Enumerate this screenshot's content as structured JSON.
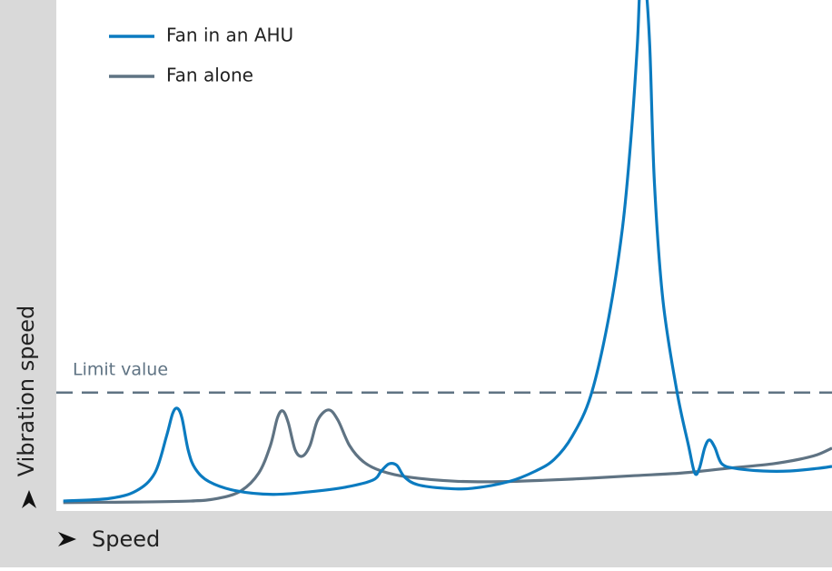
{
  "chart_data": {
    "type": "line",
    "x_label": "Speed",
    "y_label": "Vibration speed",
    "xlim": [
      0,
      100
    ],
    "ylim": [
      0,
      100
    ],
    "series": [
      {
        "name": "Fan in an AHU",
        "color": "#0b7bc0",
        "x": [
          0.9,
          6.8,
          10.3,
          12.7,
          14.2,
          15.0,
          15.6,
          16.2,
          17.0,
          17.9,
          19.7,
          23.2,
          27.9,
          32.6,
          37.2,
          40.8,
          41.9,
          42.9,
          43.9,
          44.9,
          46.6,
          50.1,
          53.6,
          58.3,
          61.8,
          64.2,
          66.5,
          68.9,
          71.2,
          73.0,
          74.1,
          74.9,
          75.3,
          75.9,
          76.5,
          77.1,
          78.2,
          80.0,
          81.5,
          82.3,
          82.9,
          83.6,
          84.2,
          84.9,
          85.8,
          87.6,
          91.1,
          94.6,
          98.1,
          100
        ],
        "values": [
          1.6,
          2.1,
          3.6,
          7.1,
          14.3,
          18.8,
          19.8,
          17.9,
          11.6,
          8.0,
          5.4,
          3.6,
          2.9,
          3.4,
          4.3,
          5.7,
          7.5,
          8.9,
          8.6,
          6.3,
          4.8,
          4.1,
          4.1,
          5.4,
          7.5,
          9.8,
          14.3,
          22.3,
          37.5,
          55.4,
          73.2,
          91.1,
          104,
          104,
          91.1,
          64.3,
          41.1,
          23.2,
          12.5,
          7.1,
          8.0,
          12.1,
          13.6,
          12.1,
          8.9,
          8.0,
          7.5,
          7.5,
          8.0,
          8.4
        ]
      },
      {
        "name": "Fan alone",
        "color": "#5f7383",
        "x": [
          0.9,
          10.3,
          17.3,
          20.8,
          23.8,
          26.1,
          27.6,
          28.5,
          29.2,
          29.9,
          30.8,
          31.7,
          32.7,
          33.7,
          35.1,
          36.3,
          37.8,
          39.6,
          41.9,
          45.4,
          51.3,
          57.1,
          63.3,
          68.9,
          74.7,
          80.6,
          86.4,
          92.3,
          95.8,
          98.1,
          100
        ],
        "values": [
          1.3,
          1.4,
          1.6,
          2.1,
          3.6,
          7.1,
          12.5,
          17.9,
          19.3,
          17.0,
          11.6,
          10.4,
          12.5,
          17.5,
          19.5,
          17.5,
          12.5,
          9.3,
          7.5,
          6.3,
          5.5,
          5.4,
          5.7,
          6.1,
          6.6,
          7.1,
          8.0,
          8.9,
          9.8,
          10.7,
          12.0
        ]
      }
    ],
    "limit": {
      "label": "Limit value",
      "value": 22.9,
      "color": "#5f7383"
    }
  }
}
